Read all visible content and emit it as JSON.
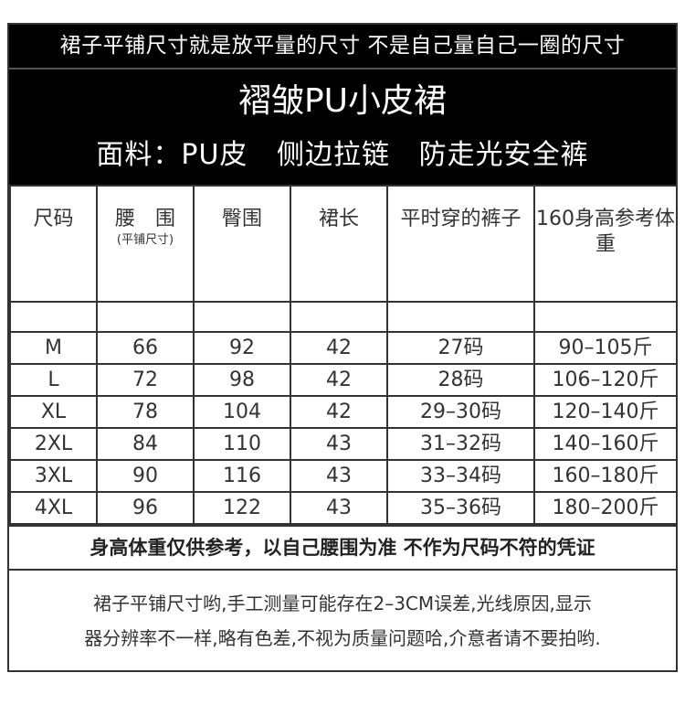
{
  "header": {
    "top_line": "裙子平铺尺寸就是放平量的尺寸 不是自己量自己一圈的尺寸",
    "title": "褶皱PU小皮裙",
    "subtitle": "面料：PU皮   侧边拉链   防走光安全裤"
  },
  "table": {
    "columns": [
      {
        "label": "尺码",
        "sub": ""
      },
      {
        "label": "腰　围",
        "sub": "(平铺尺寸)"
      },
      {
        "label": "臀围",
        "sub": ""
      },
      {
        "label": "裙长",
        "sub": ""
      },
      {
        "label": "平时穿的裤子",
        "sub": ""
      },
      {
        "label": "160身高参考体重",
        "sub": ""
      }
    ],
    "rows": [
      [
        "M",
        "66",
        "92",
        "42",
        "27码",
        "90–105斤"
      ],
      [
        "L",
        "72",
        "98",
        "42",
        "28码",
        "106–120斤"
      ],
      [
        "XL",
        "78",
        "104",
        "42",
        "29–30码",
        "120–140斤"
      ],
      [
        "2XL",
        "84",
        "110",
        "43",
        "31–32码",
        "140–160斤"
      ],
      [
        "3XL",
        "90",
        "116",
        "43",
        "33–34码",
        "160–180斤"
      ],
      [
        "4XL",
        "96",
        "122",
        "43",
        "35–36码",
        "180–200斤"
      ]
    ]
  },
  "note": "身高体重仅供参考，以自己腰围为准 不作为尺码不符的凭证",
  "remark": {
    "line1": "裙子平铺尺寸哟,手工测量可能存在2–3CM误差,光线原因,显示",
    "line2": "器分辨率不一样,略有色差,不视为质量问题哈,介意者请不要拍哟."
  }
}
